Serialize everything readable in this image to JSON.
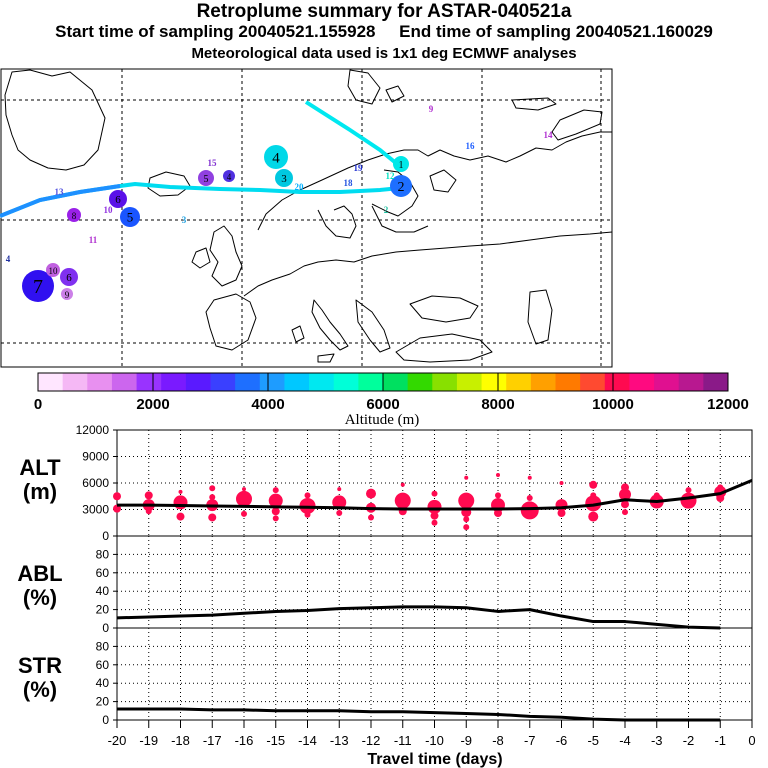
{
  "header": {
    "title": "Retroplume summary for ASTAR-040521a",
    "start_label": "Start time of sampling 20040521.155928",
    "end_label": "End time of sampling 20040521.160029",
    "meteo_label": "Meteorological data used is 1x1 deg ECMWF analyses"
  },
  "map": {
    "name": "retroplume trajectory map",
    "track_color_main": "#00e8f0",
    "track_color_west": "#1e90ff",
    "labels": [
      {
        "text": "1",
        "color": "#00e8e8",
        "big": true
      },
      {
        "text": "2",
        "color": "#1e6fff",
        "big": true
      },
      {
        "text": "3",
        "color": "#00c8e0",
        "big": true
      },
      {
        "text": "4",
        "color": "#00d8e8",
        "big": true
      },
      {
        "text": "5",
        "color": "#1a55ff",
        "big": true
      },
      {
        "text": "6",
        "color": "#5a10e8",
        "big": true
      },
      {
        "text": "7",
        "color": "#3010f0",
        "big": true
      },
      {
        "text": "8",
        "color": "#9a20e8",
        "big": true
      },
      {
        "text": "9",
        "color": "#cc80e8",
        "big": true
      },
      {
        "text": "10",
        "color": "#c060e0",
        "big": true
      },
      {
        "text": "6",
        "color": "#8030f0",
        "big": true
      },
      {
        "text": "5",
        "color": "#9040e0",
        "big": true
      },
      {
        "text": "4",
        "color": "#5030e0",
        "big": true
      },
      {
        "text": "20",
        "color": "#00b0ff",
        "big": false
      },
      {
        "text": "9",
        "color": "#b030d0",
        "big": false
      },
      {
        "text": "16",
        "color": "#2060ff",
        "big": false
      },
      {
        "text": "14",
        "color": "#b030d0",
        "big": false
      },
      {
        "text": "15",
        "color": "#8030d0",
        "big": false
      },
      {
        "text": "13",
        "color": "#5050e0",
        "big": false
      },
      {
        "text": "19",
        "color": "#2030d0",
        "big": false
      },
      {
        "text": "11",
        "color": "#b030d0",
        "big": false
      },
      {
        "text": "10",
        "color": "#9030e0",
        "big": false
      },
      {
        "text": "4",
        "color": "#2030a0",
        "big": false
      },
      {
        "text": "3",
        "color": "#20a0e0",
        "big": false
      },
      {
        "text": "12",
        "color": "#00e0c0",
        "big": false
      },
      {
        "text": "18",
        "color": "#2050e0",
        "big": false
      },
      {
        "text": "2",
        "color": "#20c0a0",
        "big": false
      }
    ]
  },
  "colorbar": {
    "title": "Altitude (m)",
    "ticks": [
      "0",
      "2000",
      "4000",
      "6000",
      "8000",
      "10000",
      "12000"
    ],
    "colors": [
      "#ffe6ff",
      "#f5b8f5",
      "#e890f0",
      "#cc66ee",
      "#9933ff",
      "#7a1aff",
      "#5a1aff",
      "#3a40ff",
      "#1e6fff",
      "#1e9cff",
      "#00c8ff",
      "#00e8f0",
      "#00ffd8",
      "#00ff9c",
      "#00e060",
      "#33d900",
      "#88e000",
      "#c8f000",
      "#ffff00",
      "#ffd000",
      "#ffa000",
      "#ff7a00",
      "#ff4a30",
      "#ff0a50",
      "#ff0a80",
      "#e01090",
      "#b81890",
      "#8a1a88"
    ]
  },
  "chart_data": [
    {
      "type": "line",
      "name": "altitude",
      "ylabel": "ALT\n(m)",
      "ylabel_lines": [
        "ALT",
        "(m)"
      ],
      "ylim": [
        0,
        12000
      ],
      "yticks": [
        "0",
        "3000",
        "6000",
        "9000",
        "12000"
      ],
      "x": [
        -20,
        -19,
        -18,
        -17,
        -16,
        -15,
        -14,
        -13,
        -12,
        -11,
        -10,
        -9,
        -8,
        -7,
        -6,
        -5,
        -4,
        -3,
        -2,
        -1,
        0
      ],
      "y": [
        3500,
        3500,
        3450,
        3400,
        3350,
        3300,
        3250,
        3200,
        3100,
        3050,
        3050,
        3050,
        3050,
        3100,
        3200,
        3500,
        4100,
        3900,
        4300,
        4800,
        6300
      ],
      "line_color": "#000000",
      "marker_color": "#ff0a50",
      "scatter": [
        {
          "x": -20,
          "y": 4500,
          "s": 4
        },
        {
          "x": -20,
          "y": 3100,
          "s": 4
        },
        {
          "x": -19,
          "y": 4600,
          "s": 4
        },
        {
          "x": -19,
          "y": 3500,
          "s": 6
        },
        {
          "x": -19,
          "y": 2800,
          "s": 3
        },
        {
          "x": -18,
          "y": 3800,
          "s": 7
        },
        {
          "x": -18,
          "y": 2200,
          "s": 4
        },
        {
          "x": -18,
          "y": 5000,
          "s": 2
        },
        {
          "x": -17,
          "y": 5400,
          "s": 3
        },
        {
          "x": -17,
          "y": 3500,
          "s": 6
        },
        {
          "x": -17,
          "y": 2100,
          "s": 4
        },
        {
          "x": -17,
          "y": 4400,
          "s": 3
        },
        {
          "x": -16,
          "y": 4200,
          "s": 8
        },
        {
          "x": -16,
          "y": 2500,
          "s": 3
        },
        {
          "x": -16,
          "y": 5300,
          "s": 2
        },
        {
          "x": -15,
          "y": 4000,
          "s": 7
        },
        {
          "x": -15,
          "y": 5200,
          "s": 3
        },
        {
          "x": -15,
          "y": 2800,
          "s": 4
        },
        {
          "x": -15,
          "y": 2000,
          "s": 3
        },
        {
          "x": -14,
          "y": 3400,
          "s": 8
        },
        {
          "x": -14,
          "y": 4600,
          "s": 3
        },
        {
          "x": -14,
          "y": 2400,
          "s": 3
        },
        {
          "x": -13,
          "y": 3800,
          "s": 7
        },
        {
          "x": -13,
          "y": 2600,
          "s": 3
        },
        {
          "x": -13,
          "y": 5300,
          "s": 2
        },
        {
          "x": -12,
          "y": 4800,
          "s": 5
        },
        {
          "x": -12,
          "y": 3200,
          "s": 5
        },
        {
          "x": -12,
          "y": 2100,
          "s": 3
        },
        {
          "x": -11,
          "y": 4000,
          "s": 8
        },
        {
          "x": -11,
          "y": 2800,
          "s": 4
        },
        {
          "x": -11,
          "y": 5800,
          "s": 2
        },
        {
          "x": -10,
          "y": 4800,
          "s": 3
        },
        {
          "x": -10,
          "y": 3300,
          "s": 7
        },
        {
          "x": -10,
          "y": 2300,
          "s": 4
        },
        {
          "x": -10,
          "y": 1500,
          "s": 3
        },
        {
          "x": -9,
          "y": 4000,
          "s": 8
        },
        {
          "x": -9,
          "y": 2700,
          "s": 5
        },
        {
          "x": -9,
          "y": 1900,
          "s": 3
        },
        {
          "x": -9,
          "y": 1000,
          "s": 3
        },
        {
          "x": -9,
          "y": 6600,
          "s": 2
        },
        {
          "x": -8,
          "y": 3500,
          "s": 7
        },
        {
          "x": -8,
          "y": 2600,
          "s": 4
        },
        {
          "x": -8,
          "y": 4600,
          "s": 3
        },
        {
          "x": -8,
          "y": 6900,
          "s": 2
        },
        {
          "x": -7,
          "y": 2900,
          "s": 9
        },
        {
          "x": -7,
          "y": 6600,
          "s": 2
        },
        {
          "x": -7,
          "y": 4300,
          "s": 3
        },
        {
          "x": -6,
          "y": 3500,
          "s": 6
        },
        {
          "x": -6,
          "y": 2600,
          "s": 4
        },
        {
          "x": -6,
          "y": 6000,
          "s": 2
        },
        {
          "x": -5,
          "y": 3700,
          "s": 8
        },
        {
          "x": -5,
          "y": 2200,
          "s": 5
        },
        {
          "x": -5,
          "y": 5800,
          "s": 4
        },
        {
          "x": -5,
          "y": 4600,
          "s": 3
        },
        {
          "x": -4,
          "y": 4700,
          "s": 6
        },
        {
          "x": -4,
          "y": 5500,
          "s": 4
        },
        {
          "x": -4,
          "y": 2700,
          "s": 3
        },
        {
          "x": -4,
          "y": 3600,
          "s": 4
        },
        {
          "x": -3,
          "y": 3900,
          "s": 7
        },
        {
          "x": -3,
          "y": 4600,
          "s": 3
        },
        {
          "x": -2,
          "y": 4000,
          "s": 8
        },
        {
          "x": -2,
          "y": 5200,
          "s": 3
        },
        {
          "x": -1,
          "y": 5000,
          "s": 6
        },
        {
          "x": -1,
          "y": 4300,
          "s": 4
        },
        {
          "x": -1,
          "y": 5500,
          "s": 3
        }
      ]
    },
    {
      "type": "line",
      "name": "abl",
      "ylabel": "ABL\n(%)",
      "ylabel_lines": [
        "ABL",
        "(%)"
      ],
      "ylim": [
        0,
        100
      ],
      "yticks": [
        "0",
        "20",
        "40",
        "60",
        "80"
      ],
      "x": [
        -20,
        -19,
        -18,
        -17,
        -16,
        -15,
        -14,
        -13,
        -12,
        -11,
        -10,
        -9,
        -8,
        -7,
        -6,
        -5,
        -4,
        -3,
        -2,
        -1
      ],
      "y": [
        11,
        12,
        13,
        14,
        16,
        18,
        19,
        21,
        22,
        23,
        23,
        22,
        18,
        20,
        13,
        7,
        7,
        4,
        1,
        0
      ]
    },
    {
      "type": "line",
      "name": "str",
      "ylabel": "STR\n(%)",
      "ylabel_lines": [
        "STR",
        "(%)"
      ],
      "ylim": [
        0,
        100
      ],
      "yticks": [
        "0",
        "20",
        "40",
        "60",
        "80"
      ],
      "x": [
        -20,
        -19,
        -18,
        -17,
        -16,
        -15,
        -14,
        -13,
        -12,
        -11,
        -10,
        -9,
        -8,
        -7,
        -6,
        -5,
        -4,
        -3,
        -2,
        -1
      ],
      "y": [
        12,
        12,
        12,
        11,
        11,
        10,
        10,
        10,
        9,
        9,
        8,
        7,
        6,
        4,
        3,
        1,
        0,
        0,
        0,
        0
      ]
    }
  ],
  "xaxis": {
    "label": "Travel time (days)",
    "tick_labels": [
      "-20",
      "-19",
      "-18",
      "-17",
      "-16",
      "-15",
      "-14",
      "-13",
      "-12",
      "-11",
      "-10",
      "-9",
      "-8",
      "-7",
      "-6",
      "-5",
      "-4",
      "-3",
      "-2",
      "-1",
      "0"
    ]
  }
}
